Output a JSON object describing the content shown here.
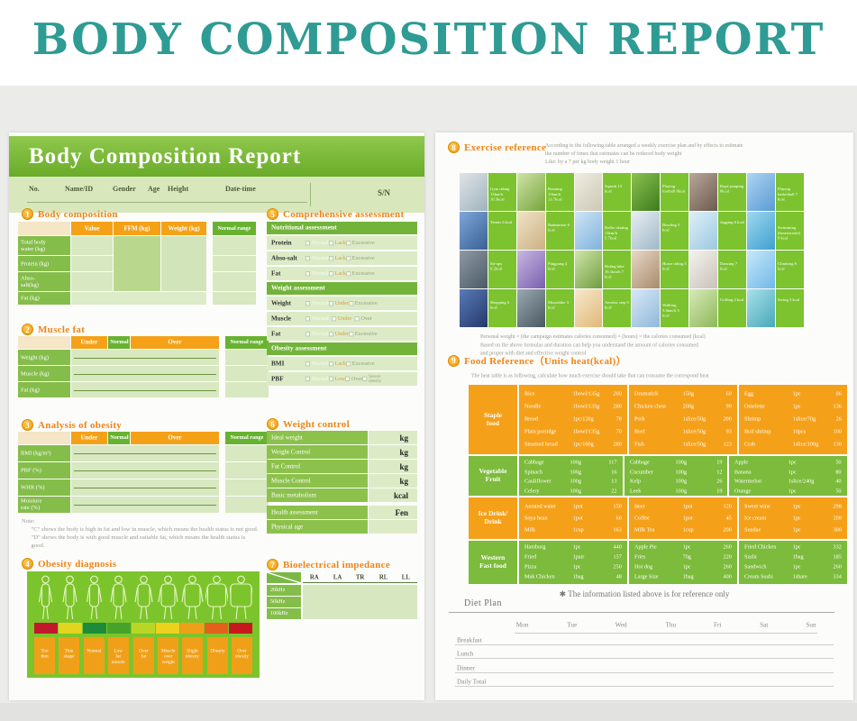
{
  "title": "BODY COMPOSITION REPORT",
  "left": {
    "header": "Body Composition Report",
    "info": {
      "fields": [
        "No.",
        "Name/ID",
        "Gender",
        "Age",
        "Height",
        "Date-time"
      ],
      "sn": "S/N"
    },
    "s1": {
      "num": "1",
      "title": "Body composition",
      "headers": [
        "Value",
        "FFM (kg)",
        "Weight (kg)",
        "Normal range"
      ],
      "rows": [
        "Total body water (kg)",
        "Protein (kg)",
        "Abso-salt(kg)",
        "Fat (kg)"
      ]
    },
    "s2": {
      "num": "2",
      "title": "Muscle fat",
      "headers": [
        "Under",
        "Normal",
        "Over",
        "Normal range"
      ],
      "rows": [
        "Weight (kg)",
        "Muscle (kg)",
        "Fat (kg)"
      ]
    },
    "s3": {
      "num": "3",
      "title": "Analysis of obesity",
      "headers": [
        "Under",
        "Normal",
        "Over",
        "Normal range"
      ],
      "rows": [
        "BMI (kg/m²)",
        "PBF (%)",
        "WHR (%)",
        "Moisture rate (%)"
      ]
    },
    "note": {
      "label": "Note:",
      "lines": [
        "\"C\" shows the body is high in fat and low in muscle, which means the health status is not good.",
        "\"D\" shows the body is with good muscle and suitable fat,  which means the health status is good."
      ]
    },
    "s4": {
      "num": "4",
      "title": "Obesity diagnosis",
      "labels": [
        "Too thin",
        "Thin shape",
        "Normal",
        "Low fat muscle",
        "Over fat",
        "Muscle over weight",
        "Slight obesity",
        "Obesity",
        "Over obesity"
      ],
      "bar_colors": [
        "#c2182b",
        "#e3d51f",
        "#1d8c3a",
        "#46a32a",
        "#b9d626",
        "#ecd11d",
        "#f0a018",
        "#e4611b",
        "#c7181c"
      ],
      "figure_color": "#e6f5c3"
    },
    "s5": {
      "num": "5",
      "title": "Comprehensive assessment",
      "groups": [
        {
          "header": "Nutritional assessment",
          "rows": [
            {
              "label": "Protein",
              "options": [
                "Normal",
                "Lack",
                "Excessive"
              ]
            },
            {
              "label": "Abso-salt",
              "options": [
                "Normal",
                "Lack",
                "Excessive"
              ]
            },
            {
              "label": "Fat",
              "options": [
                "Normal",
                "Lack",
                "Excessive"
              ]
            }
          ]
        },
        {
          "header": "Weight assessment",
          "rows": [
            {
              "label": "Weight",
              "options": [
                "Normal",
                "Under",
                "Excessive"
              ]
            },
            {
              "label": "Muscle",
              "options": [
                "Normal",
                "Under",
                "Over"
              ]
            },
            {
              "label": "Fat",
              "options": [
                "Normal",
                "Under",
                "Excessive"
              ]
            }
          ]
        },
        {
          "header": "Obesity assessment",
          "rows": [
            {
              "label": "BMI",
              "options": [
                "Normal",
                "Lack",
                "Excessive"
              ]
            },
            {
              "label": "PBF",
              "options": [
                "Normal",
                "Low",
                "Over",
                "Severe obesity"
              ]
            }
          ]
        }
      ]
    },
    "s6": {
      "num": "6",
      "title": "Weight control",
      "rows": [
        {
          "label": "Ideal weight",
          "unit": "kg"
        },
        {
          "label": "Weight Control",
          "unit": "kg"
        },
        {
          "label": "Fat Control",
          "unit": "kg"
        },
        {
          "label": "Muscle Control",
          "unit": "kg"
        },
        {
          "label": "Basic metabolism",
          "unit": "kcal"
        }
      ],
      "extra": [
        {
          "label": "Health assessment",
          "unit": "Fen"
        },
        {
          "label": "Physical age",
          "unit": ""
        }
      ]
    },
    "s7": {
      "num": "7",
      "title": "Bioelectrical impedance",
      "corner": "Hz",
      "cols": [
        "RA",
        "LA",
        "TR",
        "RL",
        "LL"
      ],
      "rows": [
        "20kHz",
        "50kHz",
        "100kHz"
      ]
    }
  },
  "right": {
    "s8": {
      "num": "8",
      "title": "Exercise reference",
      "intro": [
        "According to the following table arranged a weekly exercise plan and by effects to estimate",
        "the number of times that estimates can be reduced body weight",
        "Like: by a 7 per kg body weight 1 hour"
      ],
      "formula": [
        "Personal weight × (the campaign estimates calories consumed) × (hours) = the calories consumed (kcal)",
        "Based on the above formulas and duration can help you understand the amount of calories consumed",
        "and proper with diet and effective weight control"
      ],
      "cells": [
        {
          "photo": "linear-gradient(135deg,#dfe5e8,#9fb2bd)",
          "label": "Gym riding 13km/h 10.3kcal"
        },
        {
          "photo": "linear-gradient(135deg,#cfe3a8,#77a43c)",
          "label": "Running 13km/h 13.7kcal"
        },
        {
          "photo": "linear-gradient(135deg,#efece2,#cdc8b4)",
          "label": "Squash 13 kcal"
        },
        {
          "photo": "linear-gradient(135deg,#8cc24f,#3c7a1e)",
          "label": "Playing football 8kcal"
        },
        {
          "photo": "linear-gradient(135deg,#b9a79a,#6d5a4e)",
          "label": "Rope jumping 8kcal"
        },
        {
          "photo": "linear-gradient(135deg,#aed4f2,#5a9bd4)",
          "label": "Playing basketball 7 kcal"
        },
        {
          "photo": "linear-gradient(135deg,#7da7d9,#3a5f94)",
          "label": "Tennis 6 kcal"
        },
        {
          "photo": "linear-gradient(135deg,#f0e3c8,#cbb083)",
          "label": "Badminton 6 kcal"
        },
        {
          "photo": "linear-gradient(135deg,#cfe4f5,#7fb3dd)",
          "label": "Roller skating 11km/h 5.7kcal"
        },
        {
          "photo": "linear-gradient(135deg,#e8eef2,#9fb8c8)",
          "label": "Bowling 5 kcal"
        },
        {
          "photo": "linear-gradient(135deg,#dff0f8,#9cc8e0)",
          "label": "Jogging 6 kcal"
        },
        {
          "photo": "linear-gradient(135deg,#9fd8f0,#3f9fd0)",
          "label": "Swimming (breaststroke) 9 kcal"
        },
        {
          "photo": "linear-gradient(135deg,#8f9aa5,#4a5a66)",
          "label": "Sit-ups 6.2kcal"
        },
        {
          "photo": "linear-gradient(135deg,#c8b8e0,#7a5fb0)",
          "label": "Pingpong 4 kcal"
        },
        {
          "photo": "linear-gradient(135deg,#cfe6a8,#6f9c3f)",
          "label": "Riding bike 16.1km/h 7 kcal"
        },
        {
          "photo": "linear-gradient(135deg,#e8d8c8,#a88a6a)",
          "label": "Horse riding 5 kcal"
        },
        {
          "photo": "linear-gradient(135deg,#f5f3ef,#c8c2b8)",
          "label": "Dancing 7 kcal"
        },
        {
          "photo": "linear-gradient(135deg,#c8e8fa,#6fb8e8)",
          "label": "Climbing 8 kcal"
        },
        {
          "photo": "linear-gradient(135deg,#5a7ab8,#24386b)",
          "label": "Shopping 3 kcal"
        },
        {
          "photo": "linear-gradient(135deg,#9aa8b2,#4a5860)",
          "label": "Motorbike 3 kcal"
        },
        {
          "photo": "linear-gradient(135deg,#f8e8cc,#e0b878)",
          "label": "Aerobic step 5 kcal"
        },
        {
          "photo": "linear-gradient(135deg,#d8e8f5,#90b8dd)",
          "label": "Walking 5.6km/h 3 kcal"
        },
        {
          "photo": "linear-gradient(135deg,#d8eab8,#8cb858)",
          "label": "Golfing 4 kcal"
        },
        {
          "photo": "linear-gradient(135deg,#a8e0ea,#48a8b8)",
          "label": "Swing 3 kcal"
        }
      ]
    },
    "s9": {
      "num": "9",
      "title": "Food Reference（Units heat(kcal)）",
      "subtitle": "The heat table is as following, calculate how much exercise should take that can consume the correspond heat",
      "footnote": "The information listed above is for reference only",
      "bands": [
        {
          "name": "Staple food",
          "color": "orange",
          "cols": [
            [
              [
                "Rice",
                "1bowl/135g",
                "200"
              ],
              [
                "Noodle",
                "1bowl/135g",
                "280"
              ],
              [
                "Bread",
                "1pc/120g",
                "78"
              ],
              [
                "Plain porridge",
                "1bowl/135g",
                "70"
              ],
              [
                "Steamed bread",
                "1pc/100g",
                "280"
              ]
            ],
            [
              [
                "Drumstick",
                "150g",
                "69"
              ],
              [
                "Chicken chest",
                "200g",
                "99"
              ],
              [
                "Pork",
                "1slice/50g",
                "200"
              ],
              [
                "Beef",
                "1slice/50g",
                "93"
              ],
              [
                "Fish",
                "1slice/50g",
                "123"
              ]
            ],
            [
              [
                "Egg",
                "1pc",
                "86"
              ],
              [
                "Omelette",
                "1pc",
                "136"
              ],
              [
                "Shrimp",
                "1slice/70g",
                "26"
              ],
              [
                "Boil shrimp",
                "10pcs",
                "100"
              ],
              [
                "Crab",
                "1slice/100g",
                "130"
              ]
            ]
          ]
        },
        {
          "name": "Vegetable Fruit",
          "color": "green",
          "cols": [
            [
              [
                "Cabbage",
                "100g",
                "117"
              ],
              [
                "Spinach",
                "100g",
                "16"
              ],
              [
                "Cauliflower",
                "100g",
                "13"
              ],
              [
                "Celery",
                "100g",
                "22"
              ]
            ],
            [
              [
                "Cabbage",
                "100g",
                "19"
              ],
              [
                "Cucumber",
                "100g",
                "12"
              ],
              [
                "Kelp",
                "100g",
                "26"
              ],
              [
                "Leek",
                "100g",
                "19"
              ]
            ],
            [
              [
                "Apple",
                "1pc",
                "50"
              ],
              [
                "Banana",
                "1pc",
                "80"
              ],
              [
                "Watermelon",
                "1slice/240g",
                "40"
              ],
              [
                "Orange",
                "1pc",
                "50"
              ]
            ]
          ]
        },
        {
          "name": "Ice Drink/ Drink",
          "color": "orange",
          "cols": [
            [
              [
                "Aerated water",
                "1pot",
                "150"
              ],
              [
                "Soya bean",
                "1pot",
                "60"
              ],
              [
                "Milk",
                "1cup",
                "163"
              ]
            ],
            [
              [
                "Beer",
                "1pot",
                "120"
              ],
              [
                "Coffee",
                "1pot",
                "45"
              ],
              [
                "Milk Tea",
                "1cup",
                "200"
              ]
            ],
            [
              [
                "Sweet wine",
                "1pc",
                "298"
              ],
              [
                "Ice cream",
                "1pc",
                "200"
              ],
              [
                "Sundae",
                "1pc",
                "300"
              ]
            ]
          ]
        },
        {
          "name": "Western Fast food",
          "color": "green",
          "cols": [
            [
              [
                "Hamburg",
                "1pc",
                "440"
              ],
              [
                "Fried",
                "1pair",
                "157"
              ],
              [
                "Pizza",
                "1pc",
                "250"
              ],
              [
                "Mak Chicken",
                "1bag",
                "48"
              ]
            ],
            [
              [
                "Apple Pie",
                "1pc",
                "260"
              ],
              [
                "Fries",
                "70g",
                "220"
              ],
              [
                "Hot dog",
                "1pc",
                "260"
              ],
              [
                "Large Size",
                "1bag",
                "400"
              ]
            ],
            [
              [
                "Fried Chicken",
                "1pc",
                "332"
              ],
              [
                "Sushi",
                "1bag",
                "185"
              ],
              [
                "Sandwich",
                "1pc",
                "260"
              ],
              [
                "Cream Sushi",
                "1share",
                "334"
              ]
            ]
          ]
        }
      ]
    },
    "diet": {
      "title": "Diet Plan",
      "days": [
        "Mon",
        "Tue",
        "Wed",
        "Thu",
        "Fri",
        "Sat",
        "Sun"
      ],
      "rows": [
        "Breakfast",
        "Lunch",
        "Dinner",
        "Daily Total"
      ]
    }
  }
}
